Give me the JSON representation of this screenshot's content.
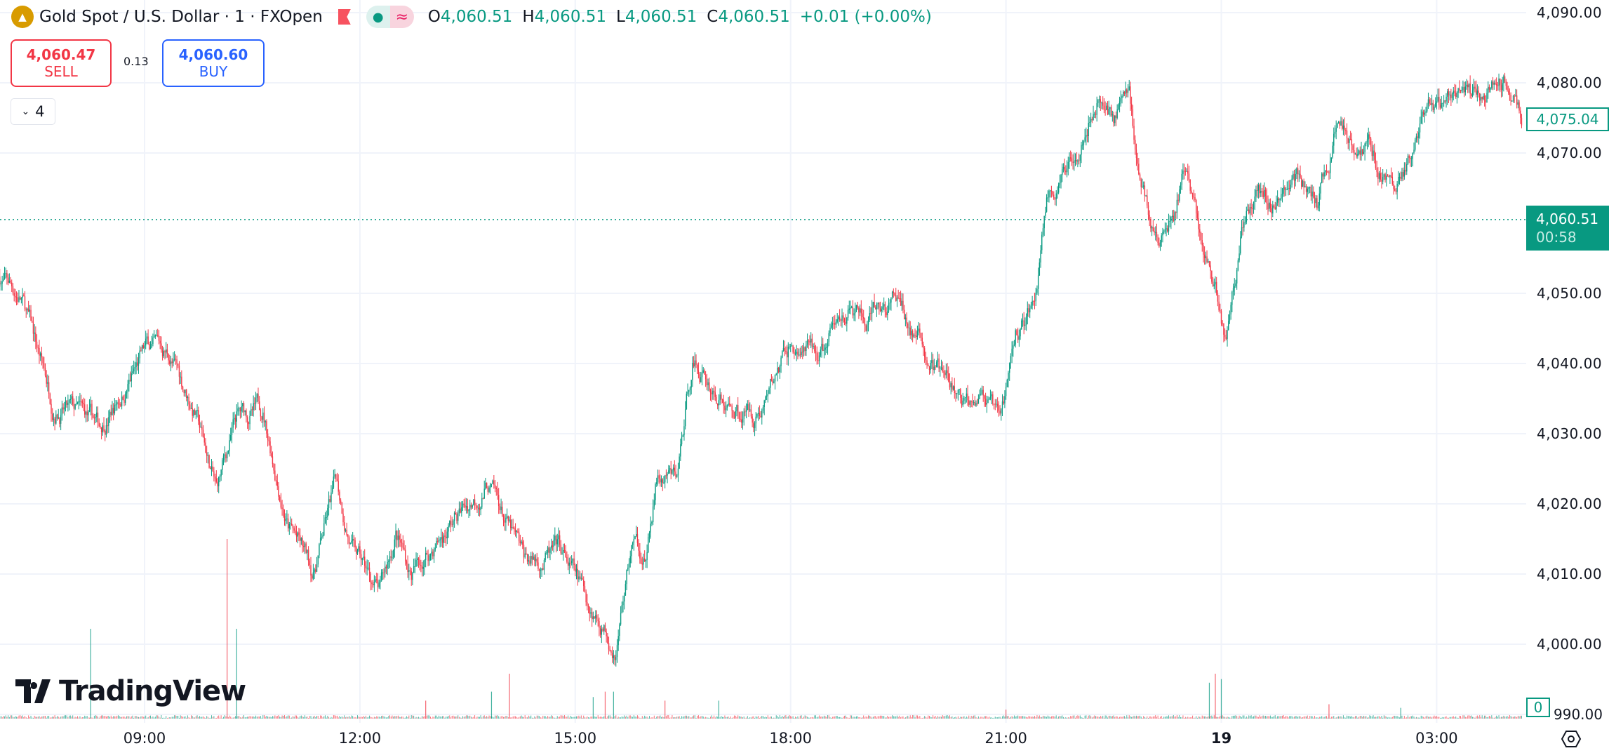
{
  "header": {
    "symbol": "Gold Spot / U.S. Dollar · 1 · FXOpen",
    "logo_icon": "gold-bars-icon",
    "ohlc": [
      {
        "k": "O",
        "v": "4,060.51"
      },
      {
        "k": "H",
        "v": "4,060.51"
      },
      {
        "k": "L",
        "v": "4,060.51"
      },
      {
        "k": "C",
        "v": "4,060.51"
      }
    ],
    "change": "+0.01 (+0.00%)"
  },
  "trade": {
    "sell_price": "4,060.47",
    "sell_label": "SELL",
    "spread": "0.13",
    "buy_price": "4,060.60",
    "buy_label": "BUY"
  },
  "indicators_toggle": {
    "count": "4"
  },
  "price_axis": {
    "labels": [
      "4,090.00",
      "4,080.00",
      "4,070.00",
      "4,050.00",
      "4,040.00",
      "4,030.00",
      "4,020.00",
      "4,010.00",
      "4,000.00",
      "990.00"
    ],
    "ma_value": "4,075.04",
    "last_price": "4,060.51",
    "countdown": "00:58",
    "volume_value": "0"
  },
  "time_axis": {
    "labels": [
      "09:00",
      "12:00",
      "15:00",
      "18:00",
      "21:00",
      "19",
      "03:00"
    ]
  },
  "watermark": "TradingView",
  "colors": {
    "up": "#089981",
    "down": "#f23645",
    "grid": "#f0f3fa",
    "last_price": "#089981"
  },
  "chart_data": {
    "type": "candlestick",
    "interval": "1 minute",
    "ylim": [
      3990,
      4090
    ],
    "last_price": 4060.51,
    "path": [
      [
        "06:59",
        4052.4
      ],
      [
        "07:17",
        4049.4
      ],
      [
        "07:43",
        4034.8
      ],
      [
        "08:22",
        4030.4
      ],
      [
        "09:03",
        4042.1
      ],
      [
        "09:20",
        4041.4
      ],
      [
        "09:42",
        4033.4
      ],
      [
        "10:00",
        4021.7
      ],
      [
        "10:17",
        4031.9
      ],
      [
        "10:39",
        4033.4
      ],
      [
        "11:00",
        4017.3
      ],
      [
        "11:21",
        4010
      ],
      [
        "11:40",
        4023.1
      ],
      [
        "11:55",
        4012.9
      ],
      [
        "12:17",
        4007
      ],
      [
        "12:30",
        4015.8
      ],
      [
        "12:43",
        4010
      ],
      [
        "13:17",
        4017.3
      ],
      [
        "13:47",
        4023.1
      ],
      [
        "14:17",
        4011.4
      ],
      [
        "14:47",
        4012.9
      ],
      [
        "15:12",
        4005.6
      ],
      [
        "15:34",
        4000.5
      ],
      [
        "15:47",
        4014.4
      ],
      [
        "16:00",
        4012.9
      ],
      [
        "16:08",
        4023.1
      ],
      [
        "16:25",
        4023.1
      ],
      [
        "16:38",
        4040.7
      ],
      [
        "17:08",
        4033.4
      ],
      [
        "17:34",
        4033.4
      ],
      [
        "17:59",
        4042.1
      ],
      [
        "18:25",
        4040.7
      ],
      [
        "18:47",
        4048
      ],
      [
        "19:04",
        4045.1
      ],
      [
        "19:29",
        4048.7
      ],
      [
        "19:55",
        4040.7
      ],
      [
        "20:25",
        4033.4
      ],
      [
        "20:38",
        4037.7
      ],
      [
        "20:55",
        4030.4
      ],
      [
        "21:08",
        4043.6
      ],
      [
        "21:25",
        4049.4
      ],
      [
        "21:34",
        4064.1
      ],
      [
        "21:47",
        4065.5
      ],
      [
        "22:04",
        4074.3
      ],
      [
        "22:17",
        4078.7
      ],
      [
        "22:30",
        4075.8
      ],
      [
        "22:43",
        4078.7
      ],
      [
        "22:51",
        4067
      ],
      [
        "23:08",
        4056.8
      ],
      [
        "23:21",
        4061.2
      ],
      [
        "23:30",
        4068.5
      ],
      [
        "23:42",
        4058.2
      ],
      [
        "23:55",
        4050.9
      ],
      [
        "00:04",
        4043.6
      ],
      [
        "00:17",
        4059.7
      ],
      [
        "00:30",
        4065.5
      ],
      [
        "00:47",
        4062.6
      ],
      [
        "01:00",
        4068.5
      ],
      [
        "01:21",
        4061.9
      ],
      [
        "01:38",
        4074.3
      ],
      [
        "02:04",
        4071.4
      ],
      [
        "02:25",
        4064.8
      ],
      [
        "02:47",
        4072.8
      ],
      [
        "03:13",
        4078.7
      ],
      [
        "03:34",
        4077.2
      ],
      [
        "03:56",
        4080.9
      ],
      [
        "04:11",
        4075.8
      ]
    ],
    "volume_spikes": [
      [
        "08:15",
        0.5
      ],
      [
        "10:09",
        1.0
      ],
      [
        "10:17",
        0.5
      ],
      [
        "12:55",
        0.1
      ],
      [
        "13:50",
        0.15
      ],
      [
        "14:05",
        0.25
      ],
      [
        "15:15",
        0.12
      ],
      [
        "15:25",
        0.15
      ],
      [
        "15:32",
        0.15
      ],
      [
        "16:15",
        0.1
      ],
      [
        "17:00",
        0.1
      ],
      [
        "21:00",
        0.05
      ],
      [
        "23:50",
        0.2
      ],
      [
        "23:55",
        0.25
      ],
      [
        "00:00",
        0.22
      ],
      [
        "01:30",
        0.08
      ],
      [
        "02:30",
        0.06
      ]
    ]
  }
}
